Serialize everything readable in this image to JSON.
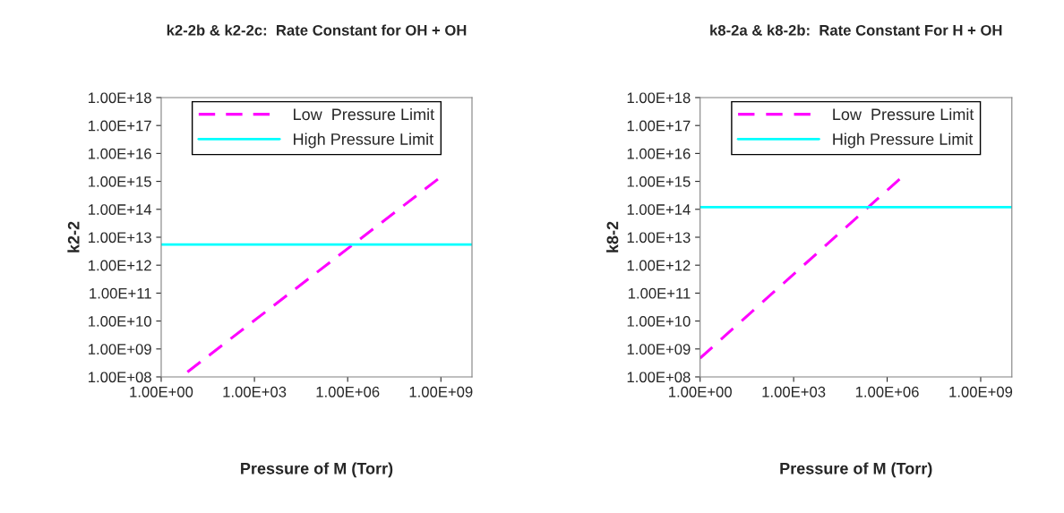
{
  "chart_data": [
    {
      "type": "line",
      "title": "k2-2b & k2-2c:  Rate Constant for OH + OH",
      "xlabel": "Pressure of M (Torr)",
      "ylabel": "k2-2",
      "log": "xy",
      "grid": false,
      "legend": "top",
      "marker": "none",
      "xlim": [
        1,
        10000000000
      ],
      "xticks": [
        {
          "value": 1,
          "label": "1.00E+00"
        },
        {
          "value": 1000,
          "label": "1.00E+03"
        },
        {
          "value": 1000000,
          "label": "1.00E+06"
        },
        {
          "value": 1000000000,
          "label": "1.00E+09"
        }
      ],
      "ylim": [
        100000000,
        1000000000000000000
      ],
      "yticks": [
        {
          "value": 100000000.0,
          "label": "1.00E+08"
        },
        {
          "value": 1000000000.0,
          "label": "1.00E+09"
        },
        {
          "value": 10000000000.0,
          "label": "1.00E+10"
        },
        {
          "value": 100000000000.0,
          "label": "1.00E+11"
        },
        {
          "value": 1000000000000.0,
          "label": "1.00E+12"
        },
        {
          "value": 10000000000000.0,
          "label": "1.00E+13"
        },
        {
          "value": 100000000000000.0,
          "label": "1.00E+14"
        },
        {
          "value": 1000000000000000.0,
          "label": "1.00E+15"
        },
        {
          "value": 1e+16,
          "label": "1.00E+16"
        },
        {
          "value": 1e+17,
          "label": "1.00E+17"
        },
        {
          "value": 1e+18,
          "label": "1.00E+18"
        }
      ],
      "series": [
        {
          "name": "Low  Pressure Limit",
          "color": "#ff00ff",
          "line_style": "dashed",
          "x": [
            7,
            800000000
          ],
          "values": [
            150000000.0,
            1200000000000000.0
          ]
        },
        {
          "name": "High Pressure Limit",
          "color": "#00ffff",
          "line_style": "solid",
          "x": [
            1,
            10000000000
          ],
          "values": [
            5500000000000.0,
            5500000000000.0
          ]
        }
      ]
    },
    {
      "type": "line",
      "title": "k8-2a & k8-2b:  Rate Constant For H + OH",
      "xlabel": "Pressure of M (Torr)",
      "ylabel": "k8-2",
      "log": "xy",
      "grid": false,
      "legend": "top",
      "marker": "none",
      "xlim": [
        1,
        10000000000
      ],
      "xticks": [
        {
          "value": 1,
          "label": "1.00E+00"
        },
        {
          "value": 1000,
          "label": "1.00E+03"
        },
        {
          "value": 1000000,
          "label": "1.00E+06"
        },
        {
          "value": 1000000000,
          "label": "1.00E+09"
        }
      ],
      "ylim": [
        100000000,
        1000000000000000000
      ],
      "yticks": [
        {
          "value": 100000000.0,
          "label": "1.00E+08"
        },
        {
          "value": 1000000000.0,
          "label": "1.00E+09"
        },
        {
          "value": 10000000000.0,
          "label": "1.00E+10"
        },
        {
          "value": 100000000000.0,
          "label": "1.00E+11"
        },
        {
          "value": 1000000000000.0,
          "label": "1.00E+12"
        },
        {
          "value": 10000000000000.0,
          "label": "1.00E+13"
        },
        {
          "value": 100000000000000.0,
          "label": "1.00E+14"
        },
        {
          "value": 1000000000000000.0,
          "label": "1.00E+15"
        },
        {
          "value": 1e+16,
          "label": "1.00E+16"
        },
        {
          "value": 1e+17,
          "label": "1.00E+17"
        },
        {
          "value": 1e+18,
          "label": "1.00E+18"
        }
      ],
      "series": [
        {
          "name": "Low  Pressure Limit",
          "color": "#ff00ff",
          "line_style": "dashed",
          "x": [
            1,
            2500000
          ],
          "values": [
            470000000.0,
            1200000000000000.0
          ]
        },
        {
          "name": "High Pressure Limit",
          "color": "#00ffff",
          "line_style": "solid",
          "x": [
            1,
            10000000000
          ],
          "values": [
            120000000000000.0,
            120000000000000.0
          ]
        }
      ]
    }
  ]
}
